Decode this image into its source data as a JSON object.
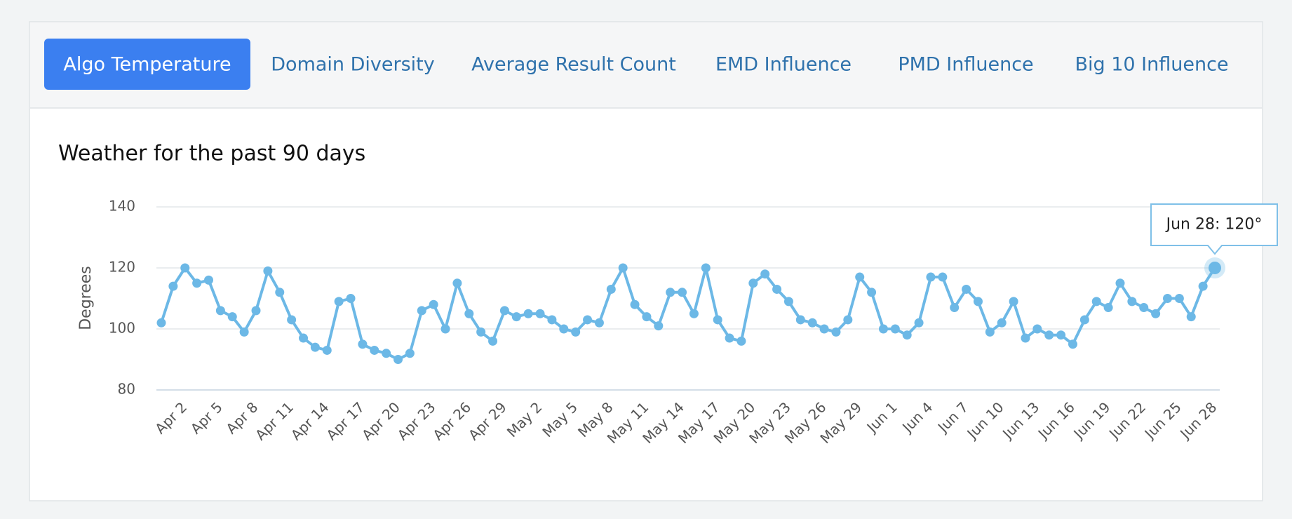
{
  "tabs": [
    "Algo Temperature",
    "Domain Diversity",
    "Average Result Count",
    "EMD Influence",
    "PMD Influence",
    "Big 10 Influence"
  ],
  "chart_data": {
    "type": "line",
    "title": "Weather for the past 90 days",
    "y_label": "Degrees",
    "tooltip": "Jun 28: 120°",
    "color": "#6cb8e6",
    "grid": true,
    "ylim": [
      80,
      140
    ],
    "yticks": [
      80,
      100,
      120,
      140
    ],
    "categories": [
      null,
      null,
      "Apr 2",
      null,
      null,
      "Apr 5",
      null,
      null,
      "Apr 8",
      null,
      null,
      "Apr 11",
      null,
      null,
      "Apr 14",
      null,
      null,
      "Apr 17",
      null,
      null,
      "Apr 20",
      null,
      null,
      "Apr 23",
      null,
      null,
      "Apr 26",
      null,
      null,
      "Apr 29",
      null,
      null,
      "May 2",
      null,
      null,
      "May 5",
      null,
      null,
      "May 8",
      null,
      null,
      "May 11",
      null,
      null,
      "May 14",
      null,
      null,
      "May 17",
      null,
      null,
      "May 20",
      null,
      null,
      "May 23",
      null,
      null,
      "May 26",
      null,
      null,
      "May 29",
      null,
      null,
      "Jun 1",
      null,
      null,
      "Jun 4",
      null,
      null,
      "Jun 7",
      null,
      null,
      "Jun 10",
      null,
      null,
      "Jun 13",
      null,
      null,
      "Jun 16",
      null,
      null,
      "Jun 19",
      null,
      null,
      "Jun 22",
      null,
      null,
      "Jun 25",
      null,
      null,
      "Jun 28"
    ],
    "values": [
      102,
      114,
      120,
      115,
      116,
      106,
      104,
      99,
      106,
      119,
      112,
      103,
      97,
      94,
      93,
      109,
      110,
      95,
      93,
      92,
      90,
      92,
      106,
      108,
      100,
      115,
      105,
      99,
      96,
      106,
      104,
      105,
      105,
      103,
      100,
      99,
      103,
      102,
      113,
      120,
      108,
      104,
      101,
      112,
      112,
      105,
      120,
      103,
      97,
      96,
      115,
      118,
      113,
      109,
      103,
      102,
      100,
      99,
      103,
      117,
      112,
      100,
      100,
      98,
      102,
      117,
      117,
      107,
      113,
      109,
      99,
      102,
      109,
      97,
      100,
      98,
      98,
      95,
      103,
      109,
      107,
      115,
      109,
      107,
      105,
      110,
      110,
      104,
      114,
      120
    ]
  }
}
